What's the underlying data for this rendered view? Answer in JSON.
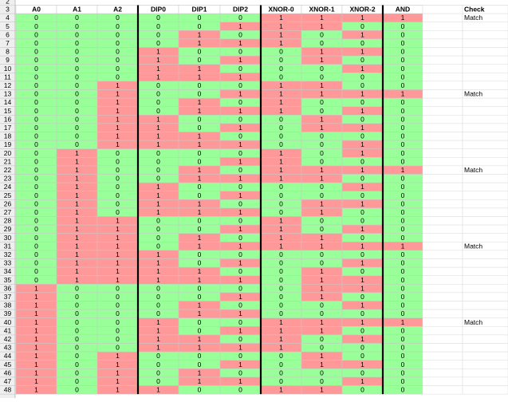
{
  "table": {
    "top_row_label": 2,
    "cell_colors": [
      "#99ff99",
      "#ff9999"
    ],
    "header": {
      "n": 3,
      "cells": [
        "A0",
        "A1",
        "A2",
        "DIP0",
        "DIP1",
        "DIP2",
        "XNOR-0",
        "XNOR-1",
        "XNOR-2",
        "AND"
      ],
      "check": "Check"
    },
    "rows": [
      {
        "n": 4,
        "cells": [
          0,
          0,
          0,
          0,
          0,
          0,
          1,
          1,
          1,
          1
        ],
        "check": "Match"
      },
      {
        "n": 5,
        "cells": [
          0,
          0,
          0,
          0,
          0,
          1,
          1,
          1,
          0,
          0
        ]
      },
      {
        "n": 6,
        "cells": [
          0,
          0,
          0,
          0,
          1,
          0,
          1,
          0,
          1,
          0
        ]
      },
      {
        "n": 7,
        "cells": [
          0,
          0,
          0,
          0,
          1,
          1,
          1,
          0,
          0,
          0
        ]
      },
      {
        "n": 8,
        "cells": [
          0,
          0,
          0,
          1,
          0,
          0,
          0,
          1,
          1,
          0
        ]
      },
      {
        "n": 9,
        "cells": [
          0,
          0,
          0,
          1,
          0,
          1,
          0,
          1,
          0,
          0
        ]
      },
      {
        "n": 10,
        "cells": [
          0,
          0,
          0,
          1,
          1,
          0,
          0,
          0,
          1,
          0
        ]
      },
      {
        "n": 11,
        "cells": [
          0,
          0,
          0,
          1,
          1,
          1,
          0,
          0,
          0,
          0
        ]
      },
      {
        "n": 12,
        "cells": [
          0,
          0,
          1,
          0,
          0,
          0,
          1,
          1,
          0,
          0
        ]
      },
      {
        "n": 13,
        "cells": [
          0,
          0,
          1,
          0,
          0,
          1,
          1,
          1,
          1,
          1
        ],
        "check": "Match"
      },
      {
        "n": 14,
        "cells": [
          0,
          0,
          1,
          0,
          1,
          0,
          1,
          0,
          0,
          0
        ]
      },
      {
        "n": 15,
        "cells": [
          0,
          0,
          1,
          0,
          1,
          1,
          1,
          0,
          1,
          0
        ]
      },
      {
        "n": 16,
        "cells": [
          0,
          0,
          1,
          1,
          0,
          0,
          0,
          1,
          0,
          0
        ]
      },
      {
        "n": 17,
        "cells": [
          0,
          0,
          1,
          1,
          0,
          1,
          0,
          1,
          1,
          0
        ]
      },
      {
        "n": 18,
        "cells": [
          0,
          0,
          1,
          1,
          1,
          0,
          0,
          0,
          0,
          0
        ]
      },
      {
        "n": 19,
        "cells": [
          0,
          0,
          1,
          1,
          1,
          1,
          0,
          0,
          1,
          0
        ]
      },
      {
        "n": 20,
        "cells": [
          0,
          1,
          0,
          0,
          0,
          0,
          1,
          0,
          1,
          0
        ]
      },
      {
        "n": 21,
        "cells": [
          0,
          1,
          0,
          0,
          0,
          1,
          1,
          0,
          0,
          0
        ]
      },
      {
        "n": 22,
        "cells": [
          0,
          1,
          0,
          0,
          1,
          0,
          1,
          1,
          1,
          1
        ],
        "check": "Match"
      },
      {
        "n": 23,
        "cells": [
          0,
          1,
          0,
          0,
          1,
          1,
          1,
          1,
          0,
          0
        ]
      },
      {
        "n": 24,
        "cells": [
          0,
          1,
          0,
          1,
          0,
          0,
          0,
          0,
          1,
          0
        ]
      },
      {
        "n": 25,
        "cells": [
          0,
          1,
          0,
          1,
          0,
          1,
          0,
          0,
          0,
          0
        ]
      },
      {
        "n": 26,
        "cells": [
          0,
          1,
          0,
          1,
          1,
          0,
          0,
          1,
          1,
          0
        ]
      },
      {
        "n": 27,
        "cells": [
          0,
          1,
          0,
          1,
          1,
          1,
          0,
          1,
          0,
          0
        ]
      },
      {
        "n": 28,
        "cells": [
          0,
          1,
          1,
          0,
          0,
          0,
          1,
          0,
          0,
          0
        ]
      },
      {
        "n": 29,
        "cells": [
          0,
          1,
          1,
          0,
          0,
          1,
          1,
          0,
          1,
          0
        ]
      },
      {
        "n": 30,
        "cells": [
          0,
          1,
          1,
          0,
          1,
          0,
          1,
          1,
          0,
          0
        ]
      },
      {
        "n": 31,
        "cells": [
          0,
          1,
          1,
          0,
          1,
          1,
          1,
          1,
          1,
          1
        ],
        "check": "Match"
      },
      {
        "n": 32,
        "cells": [
          0,
          1,
          1,
          1,
          0,
          0,
          0,
          0,
          0,
          0
        ]
      },
      {
        "n": 33,
        "cells": [
          0,
          1,
          1,
          1,
          0,
          1,
          0,
          0,
          1,
          0
        ]
      },
      {
        "n": 34,
        "cells": [
          0,
          1,
          1,
          1,
          1,
          0,
          0,
          1,
          0,
          0
        ]
      },
      {
        "n": 35,
        "cells": [
          0,
          1,
          1,
          1,
          1,
          1,
          0,
          1,
          1,
          0
        ]
      },
      {
        "n": 36,
        "cells": [
          1,
          0,
          0,
          0,
          0,
          0,
          0,
          1,
          1,
          0
        ]
      },
      {
        "n": 37,
        "cells": [
          1,
          0,
          0,
          0,
          0,
          1,
          0,
          1,
          0,
          0
        ]
      },
      {
        "n": 38,
        "cells": [
          1,
          0,
          0,
          0,
          1,
          0,
          0,
          0,
          1,
          0
        ]
      },
      {
        "n": 39,
        "cells": [
          1,
          0,
          0,
          0,
          1,
          1,
          0,
          0,
          0,
          0
        ]
      },
      {
        "n": 40,
        "cells": [
          1,
          0,
          0,
          1,
          0,
          0,
          1,
          1,
          1,
          1
        ],
        "check": "Match"
      },
      {
        "n": 41,
        "cells": [
          1,
          0,
          0,
          1,
          0,
          1,
          1,
          1,
          0,
          0
        ]
      },
      {
        "n": 42,
        "cells": [
          1,
          0,
          0,
          1,
          1,
          0,
          1,
          0,
          1,
          0
        ]
      },
      {
        "n": 43,
        "cells": [
          1,
          0,
          0,
          1,
          1,
          1,
          1,
          0,
          0,
          0
        ]
      },
      {
        "n": 44,
        "cells": [
          1,
          0,
          1,
          0,
          0,
          0,
          0,
          1,
          0,
          0
        ]
      },
      {
        "n": 45,
        "cells": [
          1,
          0,
          1,
          0,
          0,
          1,
          0,
          1,
          1,
          0
        ]
      },
      {
        "n": 46,
        "cells": [
          1,
          0,
          1,
          0,
          1,
          0,
          0,
          0,
          0,
          0
        ]
      },
      {
        "n": 47,
        "cells": [
          1,
          0,
          1,
          0,
          1,
          1,
          0,
          0,
          1,
          0
        ]
      },
      {
        "n": 48,
        "cells": [
          1,
          0,
          1,
          1,
          0,
          0,
          1,
          1,
          0,
          0
        ]
      }
    ]
  }
}
